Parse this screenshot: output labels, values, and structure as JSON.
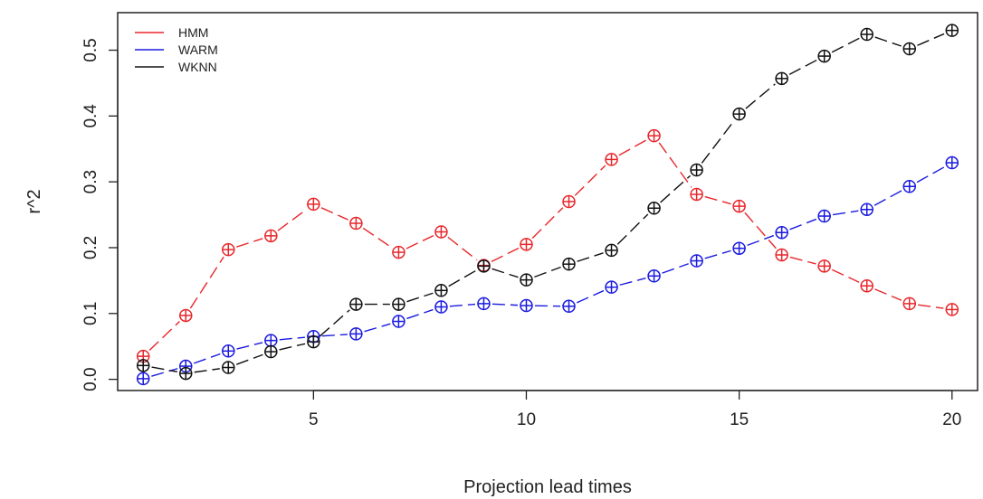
{
  "chart_data": {
    "type": "line",
    "title": "",
    "xlabel": "Projection lead times",
    "ylabel": "r^2",
    "xlim": [
      0.4,
      20.6
    ],
    "ylim": [
      -0.017,
      0.557
    ],
    "x_ticks": [
      5,
      10,
      15,
      20
    ],
    "x_tick_labels": [
      "5",
      "10",
      "15",
      "20"
    ],
    "y_ticks": [
      0.0,
      0.1,
      0.2,
      0.3,
      0.4,
      0.5
    ],
    "y_tick_labels": [
      "0.0",
      "0.1",
      "0.2",
      "0.3",
      "0.4",
      "0.5"
    ],
    "grid": false,
    "legend_position": "top-left",
    "marker": "circle-plus",
    "line_style": "dashed",
    "x": [
      1,
      2,
      3,
      4,
      5,
      6,
      7,
      8,
      9,
      10,
      11,
      12,
      13,
      14,
      15,
      16,
      17,
      18,
      19,
      20
    ],
    "series": [
      {
        "name": "HMM",
        "color": "#e8262b",
        "values": [
          0.035,
          0.097,
          0.197,
          0.218,
          0.266,
          0.237,
          0.193,
          0.224,
          0.173,
          0.205,
          0.27,
          0.334,
          0.37,
          0.281,
          0.263,
          0.189,
          0.172,
          0.142,
          0.115,
          0.106
        ]
      },
      {
        "name": "WARM",
        "color": "#1a1adf",
        "values": [
          0.001,
          0.02,
          0.043,
          0.059,
          0.065,
          0.069,
          0.088,
          0.11,
          0.115,
          0.112,
          0.111,
          0.14,
          0.157,
          0.18,
          0.199,
          0.223,
          0.248,
          0.258,
          0.293,
          0.329
        ]
      },
      {
        "name": "WKNN",
        "color": "#111111",
        "values": [
          0.021,
          0.009,
          0.018,
          0.042,
          0.057,
          0.114,
          0.114,
          0.135,
          0.172,
          0.151,
          0.175,
          0.196,
          0.26,
          0.318,
          0.403,
          0.457,
          0.491,
          0.524,
          0.502,
          0.53
        ]
      }
    ]
  }
}
